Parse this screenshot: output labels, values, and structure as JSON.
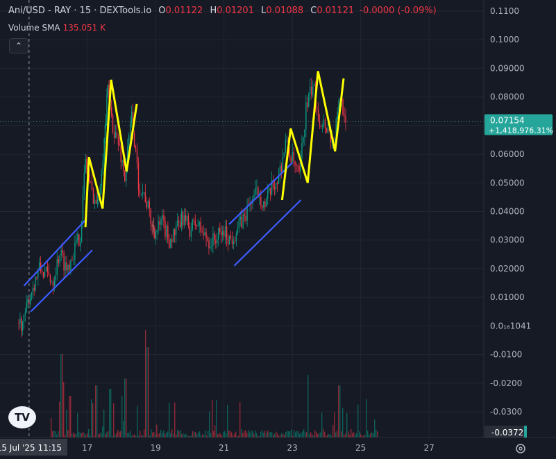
{
  "legend": {
    "symbol": "Ani/USD - RAY · 15 · DEXTools.io",
    "open_label": "O",
    "open": "0.01122",
    "high_label": "H",
    "high": "0.01201",
    "low_label": "L",
    "low": "0.01088",
    "close_label": "C",
    "close": "0.01121",
    "change": "-0.0000 (-0.09%)"
  },
  "indicator": {
    "name": "Volume SMA",
    "value": "135.051 K"
  },
  "price_badge": {
    "price": "0.07154",
    "change": "+1,418,976.31%"
  },
  "scale_bottom_badge": "-0.0372",
  "crosshair_time": "15 Jul '25   11:15",
  "logo_text": "TV",
  "colors": {
    "background": "#161a25",
    "up": "#089981",
    "down": "#f23645",
    "annotation_yellow": "#ffff00",
    "annotation_blue": "#3d5cff",
    "badge": "#26a69a"
  },
  "chart_data": {
    "type": "candlestick",
    "title": "Ani/USD - RAY · 15 · DEXTools.io",
    "ylim": [
      -0.0372,
      0.115
    ],
    "y_ticks": [
      "0.1100",
      "0.1000",
      "0.09000",
      "0.08000",
      "0.07000",
      "0.06000",
      "0.05000",
      "0.04000",
      "0.03000",
      "0.02000",
      "0.01000",
      "0.0₁₆1041",
      "-0.0100",
      "-0.0200",
      "-0.0300"
    ],
    "x_ticks": [
      "17",
      "19",
      "21",
      "23",
      "25",
      "27"
    ],
    "x_tick_values": [
      17,
      19,
      21,
      23,
      25,
      27
    ],
    "xlim": [
      14.45,
      28.6
    ],
    "crosshair_x": 15.3,
    "last_price": 0.07154,
    "price_path": [
      [
        15.0,
        0.001
      ],
      [
        15.15,
        0.0015
      ],
      [
        15.3,
        0.01
      ],
      [
        15.45,
        0.015
      ],
      [
        15.6,
        0.02
      ],
      [
        15.8,
        0.018
      ],
      [
        16.0,
        0.016
      ],
      [
        16.2,
        0.026
      ],
      [
        16.4,
        0.02
      ],
      [
        16.6,
        0.026
      ],
      [
        16.8,
        0.032
      ],
      [
        16.95,
        0.058
      ],
      [
        17.1,
        0.048
      ],
      [
        17.3,
        0.042
      ],
      [
        17.5,
        0.065
      ],
      [
        17.6,
        0.082
      ],
      [
        17.75,
        0.07
      ],
      [
        17.95,
        0.062
      ],
      [
        18.1,
        0.052
      ],
      [
        18.3,
        0.074
      ],
      [
        18.5,
        0.05
      ],
      [
        18.7,
        0.045
      ],
      [
        18.9,
        0.035
      ],
      [
        19.0,
        0.033
      ],
      [
        19.2,
        0.036
      ],
      [
        19.4,
        0.03
      ],
      [
        19.6,
        0.033
      ],
      [
        19.8,
        0.038
      ],
      [
        20.0,
        0.034
      ],
      [
        20.2,
        0.036
      ],
      [
        20.4,
        0.032
      ],
      [
        20.6,
        0.029
      ],
      [
        20.8,
        0.031
      ],
      [
        21.0,
        0.033
      ],
      [
        21.2,
        0.03
      ],
      [
        21.4,
        0.034
      ],
      [
        21.6,
        0.038
      ],
      [
        21.8,
        0.044
      ],
      [
        22.0,
        0.047
      ],
      [
        22.2,
        0.042
      ],
      [
        22.4,
        0.048
      ],
      [
        22.6,
        0.052
      ],
      [
        22.8,
        0.064
      ],
      [
        23.0,
        0.058
      ],
      [
        23.2,
        0.052
      ],
      [
        23.4,
        0.076
      ],
      [
        23.6,
        0.084
      ],
      [
        23.8,
        0.072
      ],
      [
        24.0,
        0.07
      ],
      [
        24.2,
        0.064
      ],
      [
        24.4,
        0.08
      ],
      [
        24.6,
        0.0715
      ]
    ],
    "volume_bars": "dense small bars along bottom pane",
    "annotations": {
      "yellow_zigzags": [
        [
          [
            16.95,
            0.0345
          ],
          [
            17.05,
            0.059
          ],
          [
            17.45,
            0.041
          ],
          [
            17.7,
            0.086
          ],
          [
            18.15,
            0.054
          ],
          [
            18.45,
            0.0775
          ]
        ],
        [
          [
            22.7,
            0.044
          ],
          [
            22.95,
            0.069
          ],
          [
            23.45,
            0.05
          ],
          [
            23.75,
            0.089
          ],
          [
            24.25,
            0.061
          ],
          [
            24.5,
            0.0865
          ]
        ]
      ],
      "blue_channels": [
        [
          [
            15.15,
            0.014
          ],
          [
            16.95,
            0.037
          ]
        ],
        [
          [
            15.35,
            0.005
          ],
          [
            17.15,
            0.0265
          ]
        ],
        [
          [
            21.3,
            0.021
          ],
          [
            23.25,
            0.044
          ]
        ],
        [
          [
            21.15,
            0.0355
          ],
          [
            23.0,
            0.057
          ]
        ]
      ]
    }
  }
}
